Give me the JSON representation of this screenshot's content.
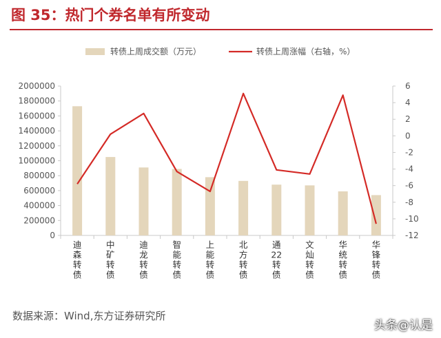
{
  "title": "图 35：热门个券名单有所变动",
  "source": "数据来源：Wind,东方证券研究所",
  "watermark": "头条@认是",
  "colors": {
    "title": "#c0282d",
    "bar": "#e4d6bb",
    "line": "#d42a26",
    "axis": "#c8c8c8",
    "text": "#555555"
  },
  "chart_data": {
    "type": "bar",
    "categories": [
      "迪森转债",
      "中矿转债",
      "迪龙转债",
      "智能转债",
      "上能转债",
      "北方转债",
      "通22转债",
      "文灿转债",
      "华统转债",
      "华锋转债"
    ],
    "category_lines": [
      [
        "迪",
        "森",
        "转",
        "债"
      ],
      [
        "中",
        "矿",
        "转",
        "债"
      ],
      [
        "迪",
        "龙",
        "转",
        "债"
      ],
      [
        "智",
        "能",
        "转",
        "债"
      ],
      [
        "上",
        "能",
        "转",
        "债"
      ],
      [
        "北",
        "方",
        "转",
        "债"
      ],
      [
        "通",
        "22",
        "转",
        "债"
      ],
      [
        "文",
        "灿",
        "转",
        "债"
      ],
      [
        "华",
        "统",
        "转",
        "债"
      ],
      [
        "华",
        "锋",
        "转",
        "债"
      ]
    ],
    "series": [
      {
        "name": "转债上周成交额（万元）",
        "type": "bar",
        "axis": "left",
        "values": [
          1730000,
          1050000,
          910000,
          890000,
          780000,
          730000,
          680000,
          670000,
          590000,
          540000
        ]
      },
      {
        "name": "转债上周涨幅（右轴，%）",
        "type": "line",
        "axis": "right",
        "values": [
          -5.8,
          0.2,
          2.7,
          -4.3,
          -6.7,
          5.1,
          -4.1,
          -4.6,
          4.9,
          -10.6
        ]
      }
    ],
    "ylim_left": [
      0,
      2000000
    ],
    "yticks_left": [
      "0",
      "200000",
      "400000",
      "600000",
      "800000",
      "1000000",
      "1200000",
      "1400000",
      "1600000",
      "1800000",
      "2000000"
    ],
    "ylim_right": [
      -12,
      6
    ],
    "yticks_right": [
      "-12",
      "-10",
      "-8",
      "-6",
      "-4",
      "-2",
      "0",
      "2",
      "4",
      "6"
    ],
    "legend_position": "top",
    "grid": false
  }
}
